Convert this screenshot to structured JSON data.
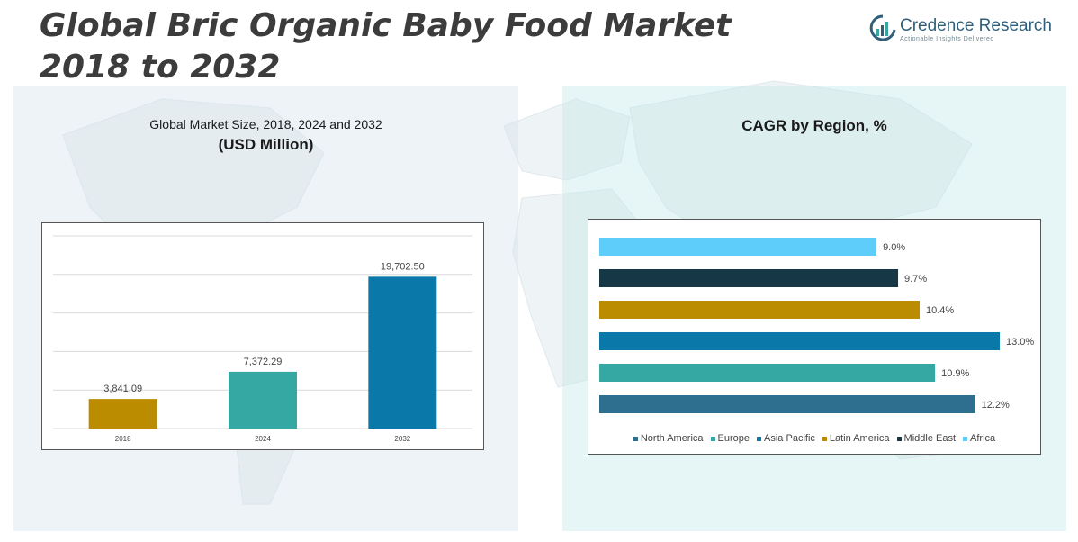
{
  "header": {
    "title_line1": "Global Bric Organic Baby Food Market",
    "title_line2": "2018 to 2032",
    "logo_name": "Credence Research",
    "logo_tagline": "Actionable Insights Delivered"
  },
  "left_panel": {
    "subtitle": "Global Market Size, 2018, 2024 and 2032",
    "unit": "(USD Million)"
  },
  "right_panel": {
    "title": "CAGR by Region, %"
  },
  "legend": [
    {
      "label": "North America",
      "color": "#2e6e8e"
    },
    {
      "label": "Europe",
      "color": "#35a8a4"
    },
    {
      "label": "Asia Pacific",
      "color": "#0a78a8"
    },
    {
      "label": "Latin America",
      "color": "#bc8c00"
    },
    {
      "label": "Middle East",
      "color": "#163746"
    },
    {
      "label": "Africa",
      "color": "#5fcdfa"
    }
  ],
  "chart_data": [
    {
      "type": "bar",
      "title": "Global Market Size, 2018, 2024 and 2032",
      "ylabel": "(USD Million)",
      "categories": [
        "2018",
        "2024",
        "2032"
      ],
      "values": [
        3841.09,
        7372.29,
        19702.5
      ],
      "value_labels": [
        "3,841.09",
        "7,372.29",
        "19,702.50"
      ],
      "colors": [
        "#bc8c00",
        "#35a8a4",
        "#0a78a8"
      ],
      "ylim": [
        0,
        25000
      ],
      "grid": true
    },
    {
      "type": "bar",
      "orientation": "horizontal",
      "title": "CAGR by Region, %",
      "categories": [
        "Africa",
        "Middle East",
        "Latin America",
        "Asia Pacific",
        "Europe",
        "North America"
      ],
      "values": [
        9.0,
        9.7,
        10.4,
        13.0,
        10.9,
        12.2
      ],
      "value_labels": [
        "9.0%",
        "9.7%",
        "10.4%",
        "13.0%",
        "10.9%",
        "12.2%"
      ],
      "colors": [
        "#5fcdfa",
        "#163746",
        "#bc8c00",
        "#0a78a8",
        "#35a8a4",
        "#2e6e8e"
      ],
      "xlim": [
        0,
        13.0
      ],
      "legend_position": "bottom",
      "grid": false
    }
  ]
}
